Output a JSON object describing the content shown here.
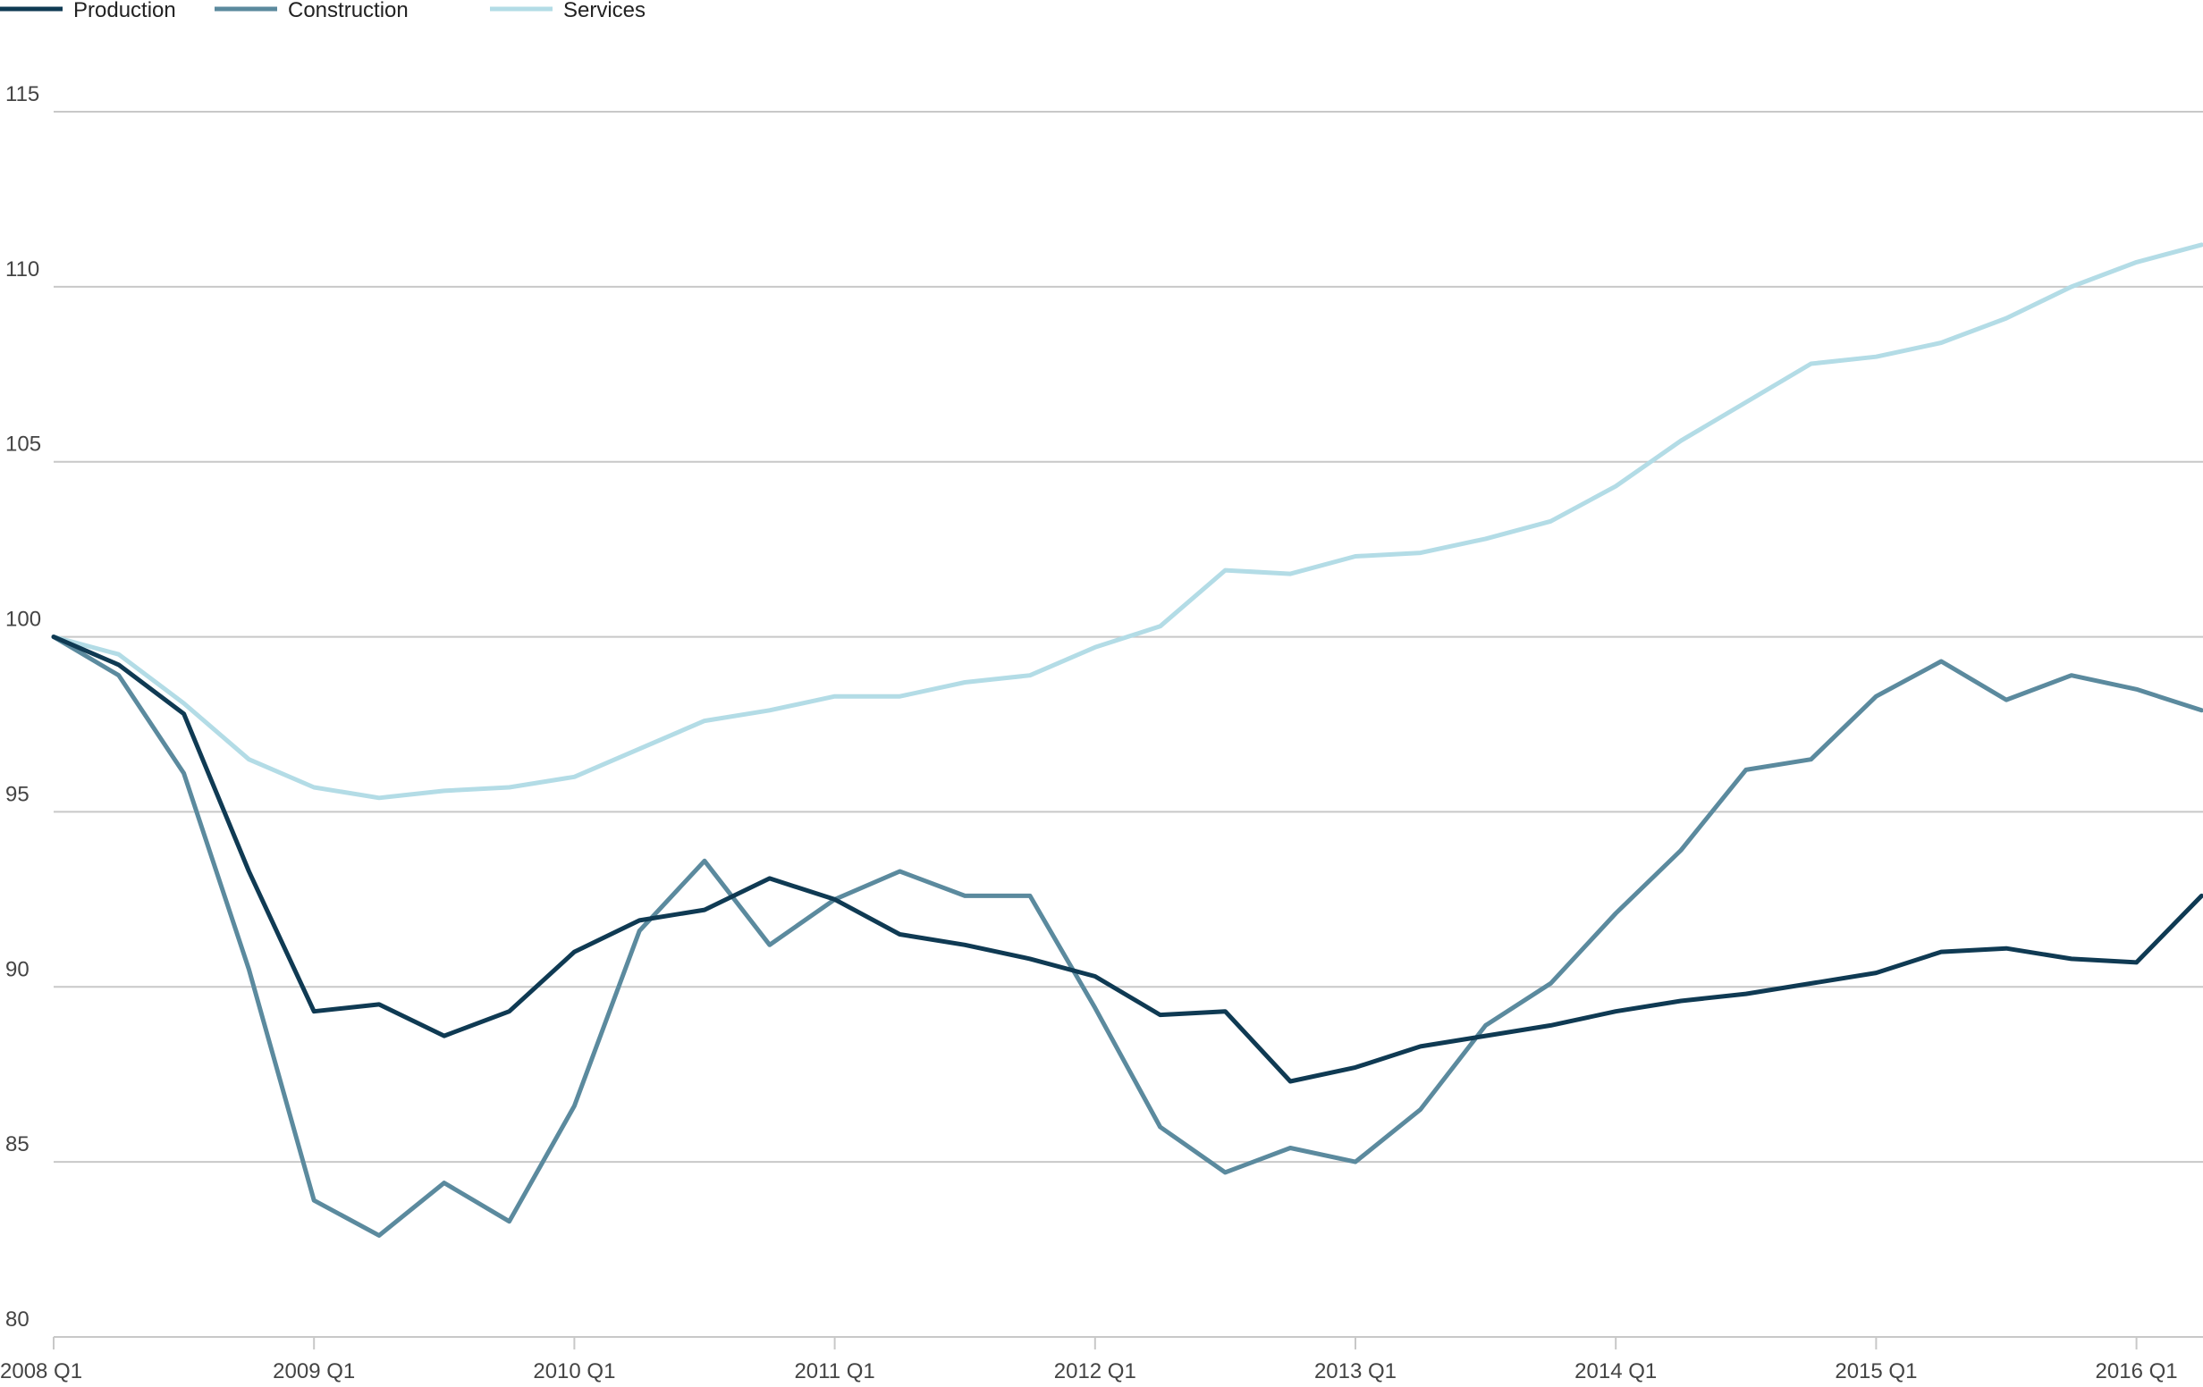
{
  "chart_data": {
    "type": "line",
    "title": "",
    "xlabel": "",
    "ylabel": "",
    "ylim": [
      80,
      115
    ],
    "y_ticks": [
      80,
      85,
      90,
      95,
      100,
      105,
      110,
      115
    ],
    "grid": true,
    "legend_position": "top-left",
    "x_tick_labels": [
      "2008 Q1",
      "2009 Q1",
      "2010 Q1",
      "2011 Q1",
      "2012 Q1",
      "2013 Q1",
      "2014 Q1",
      "2015 Q1",
      "2016 Q1"
    ],
    "categories": [
      "2008 Q1",
      "2008 Q2",
      "2008 Q3",
      "2008 Q4",
      "2009 Q1",
      "2009 Q2",
      "2009 Q3",
      "2009 Q4",
      "2010 Q1",
      "2010 Q2",
      "2010 Q3",
      "2010 Q4",
      "2011 Q1",
      "2011 Q2",
      "2011 Q3",
      "2011 Q4",
      "2012 Q1",
      "2012 Q2",
      "2012 Q3",
      "2012 Q4",
      "2013 Q1",
      "2013 Q2",
      "2013 Q3",
      "2013 Q4",
      "2014 Q1",
      "2014 Q2",
      "2014 Q3",
      "2014 Q4",
      "2015 Q1",
      "2015 Q2",
      "2015 Q3",
      "2015 Q4",
      "2016 Q1",
      "2016 Q2"
    ],
    "series": [
      {
        "name": "Production",
        "color": "#0f3a53",
        "values": [
          100,
          99.2,
          97.8,
          93.3,
          89.3,
          89.5,
          88.6,
          89.3,
          91.0,
          91.9,
          92.2,
          93.1,
          92.5,
          91.5,
          91.2,
          90.8,
          90.3,
          89.2,
          89.3,
          87.3,
          87.7,
          88.3,
          88.6,
          88.9,
          89.3,
          89.6,
          89.8,
          90.1,
          90.4,
          91.0,
          91.1,
          90.8,
          90.7,
          92.6
        ]
      },
      {
        "name": "Construction",
        "color": "#5b8a9e",
        "values": [
          100,
          98.9,
          96.1,
          90.5,
          83.9,
          82.9,
          84.4,
          83.3,
          86.6,
          91.6,
          93.6,
          91.2,
          92.5,
          93.3,
          92.6,
          92.6,
          89.4,
          86.0,
          84.7,
          85.4,
          85.0,
          86.5,
          88.9,
          90.1,
          92.1,
          93.9,
          96.2,
          96.5,
          98.3,
          99.3,
          98.2,
          98.9,
          98.5,
          97.9
        ]
      },
      {
        "name": "Services",
        "color": "#b3dce6",
        "values": [
          100,
          99.5,
          98.1,
          96.5,
          95.7,
          95.4,
          95.6,
          95.7,
          96.0,
          96.8,
          97.6,
          97.9,
          98.3,
          98.3,
          98.7,
          98.9,
          99.7,
          100.3,
          101.9,
          101.8,
          102.3,
          102.4,
          102.8,
          103.3,
          104.3,
          105.6,
          106.7,
          107.8,
          108.0,
          108.4,
          109.1,
          110.0,
          110.7,
          111.2
        ]
      }
    ]
  }
}
